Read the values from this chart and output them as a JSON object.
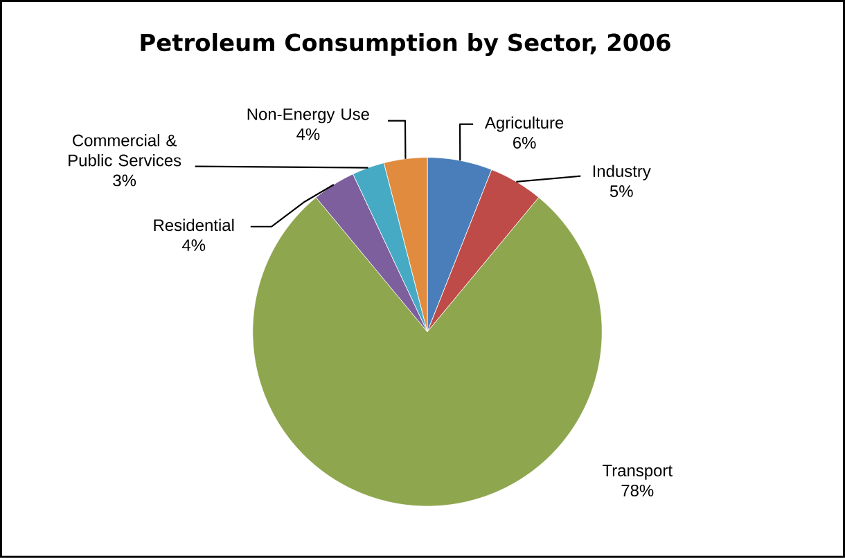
{
  "chart_data": {
    "type": "pie",
    "title": "Petroleum Consumption by Sector, 2006",
    "categories": [
      "Agriculture",
      "Industry",
      "Transport",
      "Residential",
      "Commercial & Public Services",
      "Non-Energy Use"
    ],
    "values": [
      6,
      5,
      78,
      4,
      3,
      4
    ],
    "value_labels": [
      "6%",
      "5%",
      "78%",
      "4%",
      "3%",
      "4%"
    ],
    "colors": [
      "#4a7ebb",
      "#be4b48",
      "#8ea64e",
      "#7d5f9e",
      "#46aac4",
      "#e08b3e"
    ]
  }
}
